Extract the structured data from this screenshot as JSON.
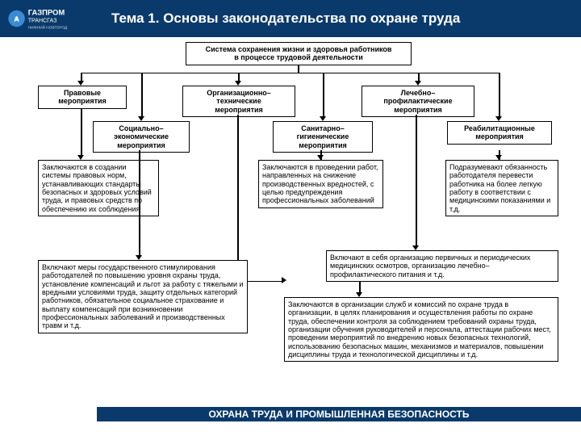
{
  "colors": {
    "brand": "#0a3a6b",
    "bg": "#ffffff",
    "line": "#000000"
  },
  "header": {
    "logo_company": "ГАЗПРОМ",
    "logo_sub": "ТРАНСГАЗ",
    "logo_city": "НИЖНИЙ НОВГОРОД",
    "title": "Тема 1. Основы законодательства по охране труда"
  },
  "footer": {
    "text": "ОХРАНА ТРУДА И ПРОМЫШЛЕННАЯ БЕЗОПАСНОСТЬ"
  },
  "diagram": {
    "root": "Система сохранения жизни и здоровья работников\nв процессе трудовой деятельности",
    "row1": {
      "b1": "Правовые\nмероприятия",
      "b2": "Организационно–\nтехнические\nмероприятия",
      "b3": "Лечебно–\nпрофилактические\nмероприятия"
    },
    "row2": {
      "b1": "Социально–\nэкономические\nмероприятия",
      "b2": "Санитарно–\nгигиенические\nмероприятия",
      "b3": "Реабилитационные\nмероприятия"
    },
    "desc": {
      "d1": "Заключаются в создании системы правовых норм, устанавливающих стандарты безопасных и здоровых условий труда, и правовых средств по обеспечению их соблюдения",
      "d2": "Заключаются в проведении работ, направленных на снижение производственных вредностей, с целью предупреждения профессиональных заболеваний",
      "d3": "Подразумевают обязанность работодателя перевести работника на более легкую работу в соответствии с медицинскими показаниями и т.д.",
      "d4": "Включают меры государственного стимулирования работодателей по повышению уровня охраны труда, установление компенсаций и льгот за работу с тяжелыми и вредными условиями труда, защиту отдельных категорий работников, обязательное социальное страхование и выплату компенсаций при возникновении профессиональных заболеваний и производственных травм и т.д.",
      "d5": "Включают в себя организацию первичных и периодических медицинских осмотров, организацию лечебно–профилактического питания и т.д.",
      "d6": "Заключаются в организации служб и комиссий по охране труда в организации, в целях планирования и осуществления работы по охране труда, обеспечении контроля за соблюдением требований охраны труда, организации обучения руководителей и персонала, аттестации рабочих мест, проведении мероприятий по внедрению новых безопасных технологий, использованию безопасных машин, механизмов и материалов, повышении дисциплины труда и технологической дисциплины и т.д."
    }
  }
}
